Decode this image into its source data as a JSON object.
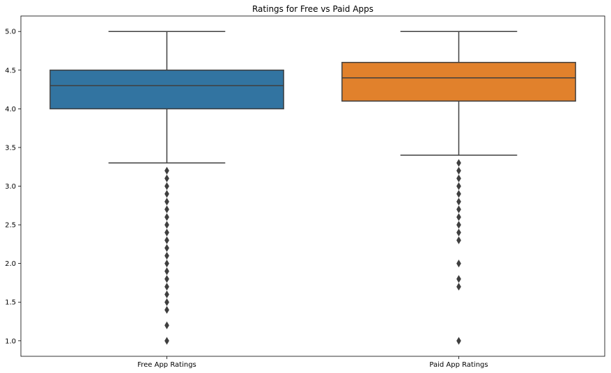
{
  "chart_data": {
    "type": "box",
    "title": "Ratings for Free vs Paid Apps",
    "xlabel": "",
    "ylabel": "",
    "ylim": [
      0.8,
      5.2
    ],
    "yticks": [
      "1.0",
      "1.5",
      "2.0",
      "2.5",
      "3.0",
      "3.5",
      "4.0",
      "4.5",
      "5.0"
    ],
    "categories": [
      "Free App Ratings",
      "Paid App Ratings"
    ],
    "boxes": [
      {
        "name": "Free App Ratings",
        "color": "#3274a1",
        "whisker_low": 3.3,
        "q1": 4.0,
        "median": 4.3,
        "q3": 4.5,
        "whisker_high": 5.0,
        "outliers": [
          3.2,
          3.1,
          3.0,
          2.9,
          2.8,
          2.7,
          2.6,
          2.5,
          2.4,
          2.3,
          2.2,
          2.1,
          2.0,
          1.9,
          1.8,
          1.7,
          1.6,
          1.5,
          1.4,
          1.2,
          1.0
        ]
      },
      {
        "name": "Paid App Ratings",
        "color": "#e1812c",
        "whisker_low": 3.4,
        "q1": 4.1,
        "median": 4.4,
        "q3": 4.6,
        "whisker_high": 5.0,
        "outliers": [
          3.3,
          3.2,
          3.1,
          3.0,
          2.9,
          2.8,
          2.7,
          2.6,
          2.5,
          2.4,
          2.3,
          2.0,
          1.8,
          1.7,
          1.0
        ]
      }
    ],
    "grid": false,
    "line_color": "#3f3f3f"
  }
}
